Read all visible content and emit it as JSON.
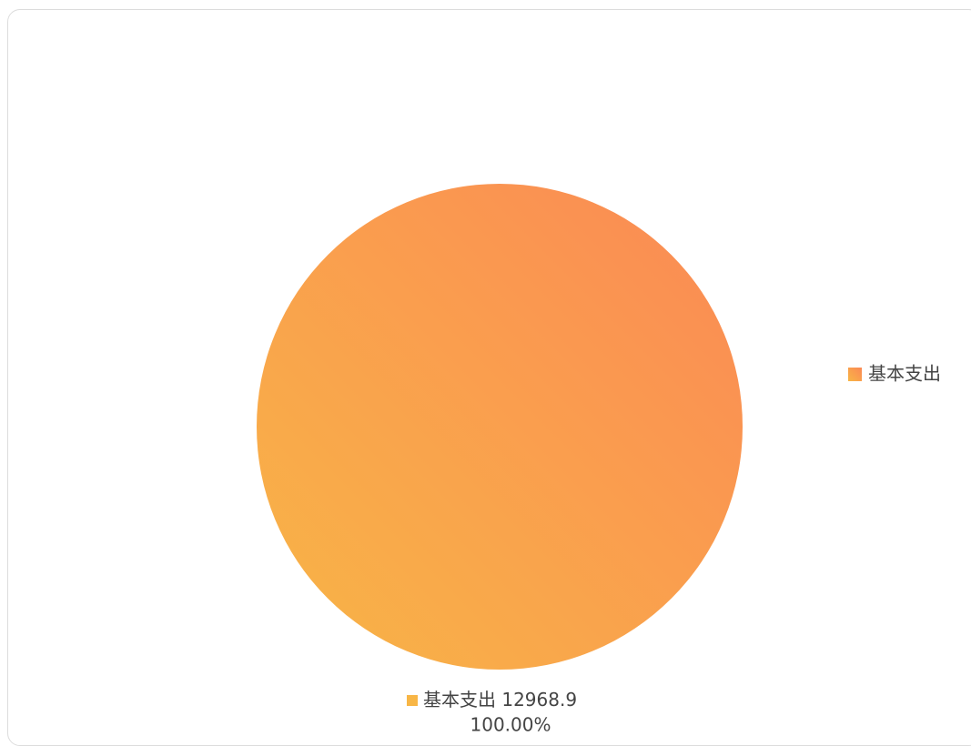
{
  "chart_data": {
    "type": "pie",
    "categories": [
      "基本支出"
    ],
    "values": [
      12968.9
    ],
    "percents": [
      100
    ],
    "percent_labels": [
      "100.00%"
    ],
    "colors": [
      [
        "#f8b646",
        "#fb8955"
      ]
    ],
    "legend": "right"
  }
}
